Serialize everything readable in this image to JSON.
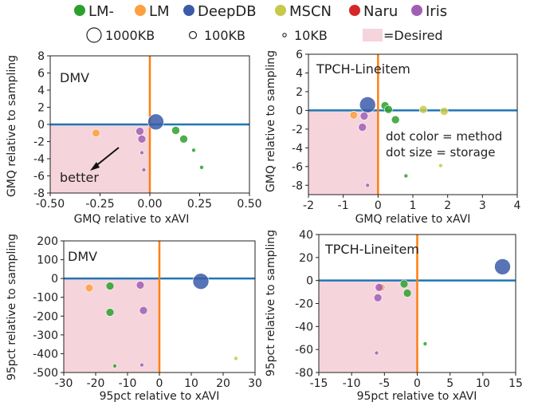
{
  "legend": {
    "methods": [
      {
        "label": "LM-",
        "color": "#2ca02c"
      },
      {
        "label": "LM",
        "color": "#ff9f40"
      },
      {
        "label": "DeepDB",
        "color": "#3b5ba9"
      },
      {
        "label": "MSCN",
        "color": "#c8c84a"
      },
      {
        "label": "Naru",
        "color": "#d62728"
      },
      {
        "label": "Iris",
        "color": "#a05eb5"
      }
    ],
    "sizes": [
      {
        "label": "1000KB",
        "radius": 10
      },
      {
        "label": "100KB",
        "radius": 5
      },
      {
        "label": "10KB",
        "radius": 2.5
      }
    ],
    "desired": {
      "label": "=Desired",
      "color": "#f6d4dc"
    }
  },
  "chart_data": [
    {
      "type": "scatter",
      "title": "DMV",
      "xlabel": "GMQ relative to xAVI",
      "ylabel": "GMQ relative to sampling",
      "xlim": [
        -0.5,
        0.5
      ],
      "ylim": [
        -8,
        8
      ],
      "xticks": [
        "-0.50",
        "-0.25",
        "0.00",
        "0.25",
        "0.50"
      ],
      "yticks": [
        "-8",
        "-6",
        "-4",
        "-2",
        "0",
        "2",
        "4",
        "6",
        "8"
      ],
      "annotation": "better",
      "points": [
        {
          "x": 0.03,
          "y": 0.3,
          "method": "DeepDB",
          "size": "1000KB"
        },
        {
          "x": -0.27,
          "y": -1.0,
          "method": "LM",
          "size": "100KB"
        },
        {
          "x": -0.05,
          "y": -0.8,
          "method": "Iris",
          "size": "100KB"
        },
        {
          "x": -0.04,
          "y": -1.7,
          "method": "Iris",
          "size": "100KB"
        },
        {
          "x": -0.04,
          "y": -3.3,
          "method": "Iris",
          "size": "10KB"
        },
        {
          "x": -0.03,
          "y": -5.3,
          "method": "Iris",
          "size": "10KB"
        },
        {
          "x": 0.13,
          "y": -0.7,
          "method": "LM-",
          "size": "100KB"
        },
        {
          "x": 0.17,
          "y": -1.7,
          "method": "LM-",
          "size": "100KB"
        },
        {
          "x": 0.22,
          "y": -3.0,
          "method": "LM-",
          "size": "10KB"
        },
        {
          "x": 0.26,
          "y": -5.0,
          "method": "LM-",
          "size": "10KB"
        }
      ]
    },
    {
      "type": "scatter",
      "title": "TPCH-Lineitem",
      "xlabel": "GMQ relative to xAVI",
      "ylabel": "GMQ relative to sampling",
      "xlim": [
        -2,
        4
      ],
      "ylim": [
        -9,
        6
      ],
      "xticks": [
        "-2",
        "-1",
        "0",
        "1",
        "2",
        "3",
        "4"
      ],
      "yticks": [
        "-8",
        "-6",
        "-4",
        "-2",
        "0",
        "2",
        "4",
        "6"
      ],
      "annotations": [
        "dot color = method",
        "dot size = storage"
      ],
      "points": [
        {
          "x": -0.3,
          "y": 0.6,
          "method": "DeepDB",
          "size": "1000KB"
        },
        {
          "x": -0.7,
          "y": -0.5,
          "method": "LM",
          "size": "100KB"
        },
        {
          "x": -0.4,
          "y": -0.6,
          "method": "Iris",
          "size": "100KB"
        },
        {
          "x": -0.45,
          "y": -1.8,
          "method": "Iris",
          "size": "100KB"
        },
        {
          "x": -0.3,
          "y": -8.0,
          "method": "Iris",
          "size": "10KB"
        },
        {
          "x": 0.2,
          "y": 0.5,
          "method": "LM-",
          "size": "100KB"
        },
        {
          "x": 0.3,
          "y": 0.1,
          "method": "LM-",
          "size": "100KB"
        },
        {
          "x": 0.5,
          "y": -1.0,
          "method": "LM-",
          "size": "100KB"
        },
        {
          "x": 0.8,
          "y": -7.0,
          "method": "LM-",
          "size": "10KB"
        },
        {
          "x": 1.3,
          "y": 0.1,
          "method": "MSCN",
          "size": "100KB"
        },
        {
          "x": 1.9,
          "y": -0.1,
          "method": "MSCN",
          "size": "100KB"
        },
        {
          "x": 1.8,
          "y": -5.9,
          "method": "MSCN",
          "size": "10KB"
        }
      ]
    },
    {
      "type": "scatter",
      "title": "DMV",
      "xlabel": "95pct relative to xAVI",
      "ylabel": "95pct relative to sampling",
      "xlim": [
        -30,
        30
      ],
      "ylim": [
        -500,
        200
      ],
      "xticks": [
        "-30",
        "-20",
        "-10",
        "0",
        "10",
        "20",
        "30"
      ],
      "yticks": [
        "-500",
        "-400",
        "-300",
        "-200",
        "-100",
        "0",
        "100",
        "200"
      ],
      "points": [
        {
          "x": 13,
          "y": -15,
          "method": "DeepDB",
          "size": "1000KB"
        },
        {
          "x": -22,
          "y": -50,
          "method": "LM",
          "size": "100KB"
        },
        {
          "x": -15.5,
          "y": -40,
          "method": "LM-",
          "size": "100KB"
        },
        {
          "x": -15.5,
          "y": -180,
          "method": "LM-",
          "size": "100KB"
        },
        {
          "x": -14,
          "y": -465,
          "method": "LM-",
          "size": "10KB"
        },
        {
          "x": -6,
          "y": -35,
          "method": "Iris",
          "size": "100KB"
        },
        {
          "x": -5,
          "y": -170,
          "method": "Iris",
          "size": "100KB"
        },
        {
          "x": -5.5,
          "y": -460,
          "method": "Iris",
          "size": "10KB"
        },
        {
          "x": 24,
          "y": -425,
          "method": "MSCN",
          "size": "10KB"
        }
      ]
    },
    {
      "type": "scatter",
      "title": "TPCH-Lineitem",
      "xlabel": "95pct relative to xAVI",
      "ylabel": "95pct relative to sampling",
      "xlim": [
        -15,
        15
      ],
      "ylim": [
        -80,
        40
      ],
      "xticks": [
        "-15",
        "-10",
        "-5",
        "0",
        "5",
        "10",
        "15"
      ],
      "yticks": [
        "-80",
        "-60",
        "-40",
        "-20",
        "0",
        "20",
        "40"
      ],
      "points": [
        {
          "x": 13,
          "y": 12,
          "method": "DeepDB",
          "size": "1000KB"
        },
        {
          "x": -5.5,
          "y": -6,
          "method": "LM",
          "size": "100KB"
        },
        {
          "x": -5.8,
          "y": -6,
          "method": "Iris",
          "size": "100KB"
        },
        {
          "x": -6,
          "y": -15,
          "method": "Iris",
          "size": "100KB"
        },
        {
          "x": -6.2,
          "y": -63,
          "method": "Iris",
          "size": "10KB"
        },
        {
          "x": -2,
          "y": -3,
          "method": "LM-",
          "size": "100KB"
        },
        {
          "x": -1.5,
          "y": -11,
          "method": "LM-",
          "size": "100KB"
        },
        {
          "x": 1.2,
          "y": -55,
          "method": "LM-",
          "size": "10KB"
        }
      ]
    }
  ]
}
